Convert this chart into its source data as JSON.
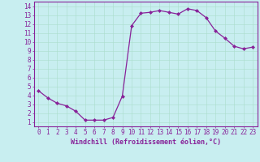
{
  "x": [
    0,
    1,
    2,
    3,
    4,
    5,
    6,
    7,
    8,
    9,
    10,
    11,
    12,
    13,
    14,
    15,
    16,
    17,
    18,
    19,
    20,
    21,
    22,
    23
  ],
  "y": [
    4.5,
    3.7,
    3.1,
    2.8,
    2.2,
    1.2,
    1.2,
    1.2,
    1.5,
    3.9,
    11.8,
    13.2,
    13.3,
    13.5,
    13.3,
    13.1,
    13.7,
    13.5,
    12.7,
    11.2,
    10.4,
    9.5,
    9.2,
    9.4
  ],
  "line_color": "#882299",
  "marker": "D",
  "marker_size": 2,
  "linewidth": 0.9,
  "xlabel": "Windchill (Refroidissement éolien,°C)",
  "xlabel_fontsize": 6.0,
  "ylabel_ticks": [
    1,
    2,
    3,
    4,
    5,
    6,
    7,
    8,
    9,
    10,
    11,
    12,
    13,
    14
  ],
  "xlim": [
    -0.5,
    23.5
  ],
  "ylim": [
    0.5,
    14.5
  ],
  "background_color": "#c8eef0",
  "grid_color": "#aaddcc",
  "tick_color": "#882299",
  "tick_fontsize": 5.5,
  "xlabel_color": "#882299",
  "spine_color": "#882299"
}
